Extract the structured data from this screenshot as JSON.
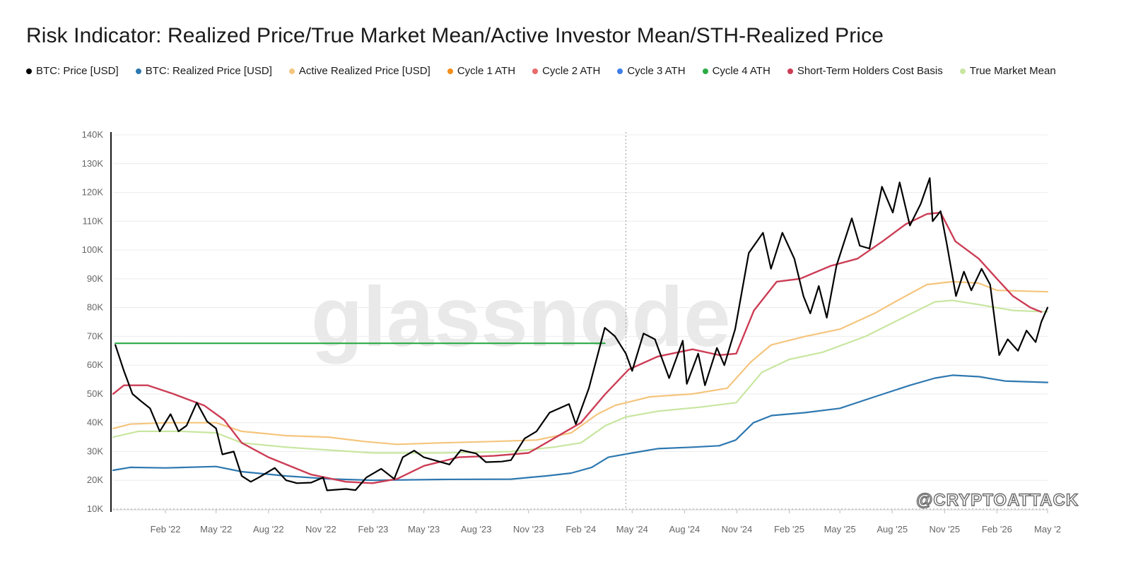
{
  "chart_data": {
    "type": "line",
    "title": "Risk Indicator: Realized Price/True Market Mean/Active Investor Mean/STH-Realized Price",
    "watermark": "glassnode",
    "credit": "@CRYPTOATTACK",
    "x_range": [
      "2021-11-01",
      "2026-05-01"
    ],
    "ylim": [
      10000,
      140000
    ],
    "y_ticks": [
      10000,
      20000,
      30000,
      40000,
      50000,
      60000,
      70000,
      80000,
      90000,
      100000,
      110000,
      120000,
      130000,
      140000
    ],
    "y_tick_labels": [
      "10K",
      "20K",
      "30K",
      "40K",
      "50K",
      "60K",
      "70K",
      "80K",
      "90K",
      "100K",
      "110K",
      "120K",
      "130K",
      "140K"
    ],
    "x_ticks": [
      "2022-02-01",
      "2022-05-01",
      "2022-08-01",
      "2022-11-01",
      "2023-02-01",
      "2023-05-01",
      "2023-08-01",
      "2023-11-01",
      "2024-02-01",
      "2024-05-01",
      "2024-08-01",
      "2024-11-01",
      "2025-02-01",
      "2025-05-01",
      "2025-08-01",
      "2025-11-01",
      "2026-02-01",
      "2026-05-01"
    ],
    "x_tick_labels": [
      "Feb '22",
      "May '22",
      "Aug '22",
      "Nov '22",
      "Feb '23",
      "May '23",
      "Aug '23",
      "Nov '23",
      "Feb '24",
      "May '24",
      "Aug '24",
      "Nov '24",
      "Feb '25",
      "May '25",
      "Aug '25",
      "Nov '25",
      "Feb '26",
      "May '2"
    ],
    "marker_line": "2024-04-20",
    "grid": true,
    "legend_position": "top",
    "series": [
      {
        "name": "BTC: Price [USD]",
        "color": "#000000",
        "width": 2.2,
        "points": [
          [
            "2021-11-05",
            67000
          ],
          [
            "2021-11-20",
            58000
          ],
          [
            "2021-12-05",
            50000
          ],
          [
            "2021-12-20",
            47500
          ],
          [
            "2022-01-05",
            45000
          ],
          [
            "2022-01-22",
            37000
          ],
          [
            "2022-02-10",
            43000
          ],
          [
            "2022-02-24",
            37000
          ],
          [
            "2022-03-10",
            39000
          ],
          [
            "2022-03-28",
            47000
          ],
          [
            "2022-04-15",
            40500
          ],
          [
            "2022-05-01",
            38000
          ],
          [
            "2022-05-12",
            29000
          ],
          [
            "2022-06-01",
            30000
          ],
          [
            "2022-06-15",
            21500
          ],
          [
            "2022-07-01",
            19500
          ],
          [
            "2022-07-15",
            21000
          ],
          [
            "2022-08-12",
            24300
          ],
          [
            "2022-09-01",
            20000
          ],
          [
            "2022-09-20",
            19000
          ],
          [
            "2022-10-15",
            19200
          ],
          [
            "2022-11-05",
            21000
          ],
          [
            "2022-11-12",
            16500
          ],
          [
            "2022-12-15",
            17000
          ],
          [
            "2023-01-01",
            16600
          ],
          [
            "2023-01-20",
            21000
          ],
          [
            "2023-02-15",
            24000
          ],
          [
            "2023-03-10",
            20500
          ],
          [
            "2023-03-25",
            28000
          ],
          [
            "2023-04-14",
            30300
          ],
          [
            "2023-05-01",
            28000
          ],
          [
            "2023-06-15",
            25500
          ],
          [
            "2023-07-05",
            30500
          ],
          [
            "2023-08-01",
            29300
          ],
          [
            "2023-08-18",
            26300
          ],
          [
            "2023-09-15",
            26500
          ],
          [
            "2023-10-01",
            27000
          ],
          [
            "2023-10-25",
            34500
          ],
          [
            "2023-11-15",
            37000
          ],
          [
            "2023-12-08",
            43500
          ],
          [
            "2024-01-11",
            46500
          ],
          [
            "2024-01-23",
            39500
          ],
          [
            "2024-02-15",
            52000
          ],
          [
            "2024-03-14",
            73000
          ],
          [
            "2024-04-01",
            70000
          ],
          [
            "2024-04-20",
            64000
          ],
          [
            "2024-05-01",
            58000
          ],
          [
            "2024-05-21",
            71000
          ],
          [
            "2024-06-10",
            69000
          ],
          [
            "2024-07-05",
            55500
          ],
          [
            "2024-07-29",
            68500
          ],
          [
            "2024-08-05",
            53500
          ],
          [
            "2024-08-25",
            64000
          ],
          [
            "2024-09-06",
            53000
          ],
          [
            "2024-09-27",
            66000
          ],
          [
            "2024-10-10",
            60000
          ],
          [
            "2024-10-29",
            72500
          ],
          [
            "2024-11-12",
            88000
          ],
          [
            "2024-11-22",
            99000
          ],
          [
            "2024-12-17",
            106000
          ],
          [
            "2024-12-31",
            93500
          ],
          [
            "2025-01-20",
            106000
          ],
          [
            "2025-02-10",
            97000
          ],
          [
            "2025-02-26",
            84000
          ],
          [
            "2025-03-10",
            78000
          ],
          [
            "2025-03-25",
            87500
          ],
          [
            "2025-04-08",
            76500
          ],
          [
            "2025-04-25",
            94500
          ],
          [
            "2025-05-22",
            111000
          ],
          [
            "2025-06-05",
            101500
          ],
          [
            "2025-06-22",
            100500
          ],
          [
            "2025-07-14",
            122000
          ],
          [
            "2025-08-02",
            113000
          ],
          [
            "2025-08-14",
            123500
          ],
          [
            "2025-09-01",
            108500
          ],
          [
            "2025-09-20",
            116000
          ],
          [
            "2025-10-06",
            125000
          ],
          [
            "2025-10-11",
            110000
          ],
          [
            "2025-10-25",
            113500
          ],
          [
            "2025-11-05",
            102000
          ],
          [
            "2025-11-21",
            84000
          ],
          [
            "2025-12-05",
            92500
          ],
          [
            "2025-12-18",
            86000
          ],
          [
            "2026-01-05",
            93500
          ],
          [
            "2026-01-20",
            88000
          ],
          [
            "2026-02-05",
            63500
          ],
          [
            "2026-02-20",
            69000
          ],
          [
            "2026-03-10",
            65000
          ],
          [
            "2026-03-25",
            72000
          ],
          [
            "2026-04-10",
            68000
          ],
          [
            "2026-04-20",
            75000
          ],
          [
            "2026-05-01",
            80000
          ]
        ]
      },
      {
        "name": "BTC: Realized Price [USD]",
        "color": "#2e78b0",
        "width": 2.2,
        "points": [
          [
            "2021-11-01",
            23500
          ],
          [
            "2021-12-01",
            24500
          ],
          [
            "2022-02-01",
            24300
          ],
          [
            "2022-05-01",
            24800
          ],
          [
            "2022-06-15",
            23000
          ],
          [
            "2022-09-01",
            21500
          ],
          [
            "2022-11-15",
            20500
          ],
          [
            "2023-02-01",
            20000
          ],
          [
            "2023-06-01",
            20300
          ],
          [
            "2023-10-01",
            20400
          ],
          [
            "2023-12-01",
            21500
          ],
          [
            "2024-01-15",
            22500
          ],
          [
            "2024-02-20",
            24500
          ],
          [
            "2024-03-20",
            28000
          ],
          [
            "2024-05-01",
            29500
          ],
          [
            "2024-06-15",
            31000
          ],
          [
            "2024-08-15",
            31500
          ],
          [
            "2024-10-01",
            32000
          ],
          [
            "2024-10-30",
            34000
          ],
          [
            "2024-11-30",
            40000
          ],
          [
            "2025-01-01",
            42500
          ],
          [
            "2025-03-01",
            43500
          ],
          [
            "2025-05-01",
            45000
          ],
          [
            "2025-07-01",
            49000
          ],
          [
            "2025-09-01",
            53000
          ],
          [
            "2025-10-15",
            55500
          ],
          [
            "2025-11-15",
            56500
          ],
          [
            "2026-01-01",
            56000
          ],
          [
            "2026-02-15",
            54500
          ],
          [
            "2026-05-01",
            54000
          ]
        ]
      },
      {
        "name": "Active Realized Price [USD]",
        "color": "#f5c57d",
        "width": 2.2,
        "points": [
          [
            "2021-11-01",
            38000
          ],
          [
            "2021-12-01",
            39500
          ],
          [
            "2022-02-01",
            40000
          ],
          [
            "2022-05-01",
            40000
          ],
          [
            "2022-06-15",
            37000
          ],
          [
            "2022-09-01",
            35500
          ],
          [
            "2022-11-15",
            35000
          ],
          [
            "2023-01-15",
            33500
          ],
          [
            "2023-03-15",
            32500
          ],
          [
            "2023-06-01",
            33000
          ],
          [
            "2023-09-01",
            33500
          ],
          [
            "2023-11-15",
            34000
          ],
          [
            "2024-01-15",
            36500
          ],
          [
            "2024-03-01",
            43000
          ],
          [
            "2024-04-01",
            46000
          ],
          [
            "2024-06-01",
            49000
          ],
          [
            "2024-08-15",
            50000
          ],
          [
            "2024-10-15",
            52000
          ],
          [
            "2024-11-25",
            61000
          ],
          [
            "2024-12-31",
            67000
          ],
          [
            "2025-03-01",
            70000
          ],
          [
            "2025-05-01",
            72500
          ],
          [
            "2025-07-01",
            78000
          ],
          [
            "2025-08-15",
            83000
          ],
          [
            "2025-10-01",
            88000
          ],
          [
            "2025-11-15",
            89000
          ],
          [
            "2025-12-31",
            88500
          ],
          [
            "2026-02-01",
            86000
          ],
          [
            "2026-05-01",
            85500
          ]
        ]
      },
      {
        "name": "Cycle 1 ATH",
        "color": "#f28e1c",
        "width": 2.2,
        "points": []
      },
      {
        "name": "Cycle 2 ATH",
        "color": "#e96b6b",
        "width": 2.2,
        "points": []
      },
      {
        "name": "Cycle 3 ATH",
        "color": "#3f7ee8",
        "width": 2.2,
        "points": []
      },
      {
        "name": "Cycle 4 ATH",
        "color": "#2bab45",
        "width": 2.2,
        "points": [
          [
            "2021-11-05",
            67600
          ],
          [
            "2024-03-14",
            67600
          ]
        ]
      },
      {
        "name": "Short-Term Holders Cost Basis",
        "color": "#cc3d55",
        "width": 2.4,
        "points": [
          [
            "2021-11-01",
            50000
          ],
          [
            "2021-11-20",
            53000
          ],
          [
            "2022-01-01",
            53000
          ],
          [
            "2022-02-15",
            50000
          ],
          [
            "2022-04-10",
            46000
          ],
          [
            "2022-05-15",
            41000
          ],
          [
            "2022-06-15",
            33000
          ],
          [
            "2022-08-01",
            28000
          ],
          [
            "2022-10-15",
            22000
          ],
          [
            "2022-12-15",
            19500
          ],
          [
            "2023-01-31",
            19000
          ],
          [
            "2023-03-15",
            20500
          ],
          [
            "2023-05-01",
            25000
          ],
          [
            "2023-07-01",
            28000
          ],
          [
            "2023-09-01",
            28500
          ],
          [
            "2023-11-01",
            29500
          ],
          [
            "2023-12-15",
            34500
          ],
          [
            "2024-02-01",
            40000
          ],
          [
            "2024-03-15",
            50000
          ],
          [
            "2024-04-25",
            58500
          ],
          [
            "2024-06-15",
            63000
          ],
          [
            "2024-08-15",
            65500
          ],
          [
            "2024-10-01",
            63500
          ],
          [
            "2024-10-31",
            64000
          ],
          [
            "2024-12-01",
            79000
          ],
          [
            "2025-01-10",
            89000
          ],
          [
            "2025-02-20",
            90000
          ],
          [
            "2025-04-15",
            94500
          ],
          [
            "2025-06-01",
            97000
          ],
          [
            "2025-07-15",
            103000
          ],
          [
            "2025-08-25",
            109000
          ],
          [
            "2025-10-01",
            112500
          ],
          [
            "2025-10-25",
            113000
          ],
          [
            "2025-11-20",
            103000
          ],
          [
            "2025-12-31",
            97000
          ],
          [
            "2026-02-01",
            90000
          ],
          [
            "2026-03-01",
            84000
          ],
          [
            "2026-04-01",
            80000
          ],
          [
            "2026-04-20",
            78500
          ]
        ]
      },
      {
        "name": "True Market Mean",
        "color": "#c8e6a0",
        "width": 2.2,
        "points": [
          [
            "2021-11-01",
            35000
          ],
          [
            "2021-12-15",
            37000
          ],
          [
            "2022-03-01",
            37000
          ],
          [
            "2022-05-01",
            36500
          ],
          [
            "2022-06-15",
            33000
          ],
          [
            "2022-09-01",
            31500
          ],
          [
            "2022-11-15",
            30500
          ],
          [
            "2023-02-01",
            29500
          ],
          [
            "2023-06-01",
            29500
          ],
          [
            "2023-10-01",
            30000
          ],
          [
            "2023-12-15",
            31500
          ],
          [
            "2024-02-01",
            33000
          ],
          [
            "2024-03-15",
            39000
          ],
          [
            "2024-04-20",
            42000
          ],
          [
            "2024-06-15",
            44000
          ],
          [
            "2024-09-01",
            45500
          ],
          [
            "2024-10-31",
            47000
          ],
          [
            "2024-12-15",
            57500
          ],
          [
            "2025-02-01",
            62000
          ],
          [
            "2025-04-01",
            64500
          ],
          [
            "2025-06-15",
            70000
          ],
          [
            "2025-08-15",
            76000
          ],
          [
            "2025-10-15",
            82000
          ],
          [
            "2025-11-15",
            82500
          ],
          [
            "2026-01-01",
            81000
          ],
          [
            "2026-03-01",
            79000
          ],
          [
            "2026-05-01",
            78500
          ]
        ]
      }
    ]
  }
}
